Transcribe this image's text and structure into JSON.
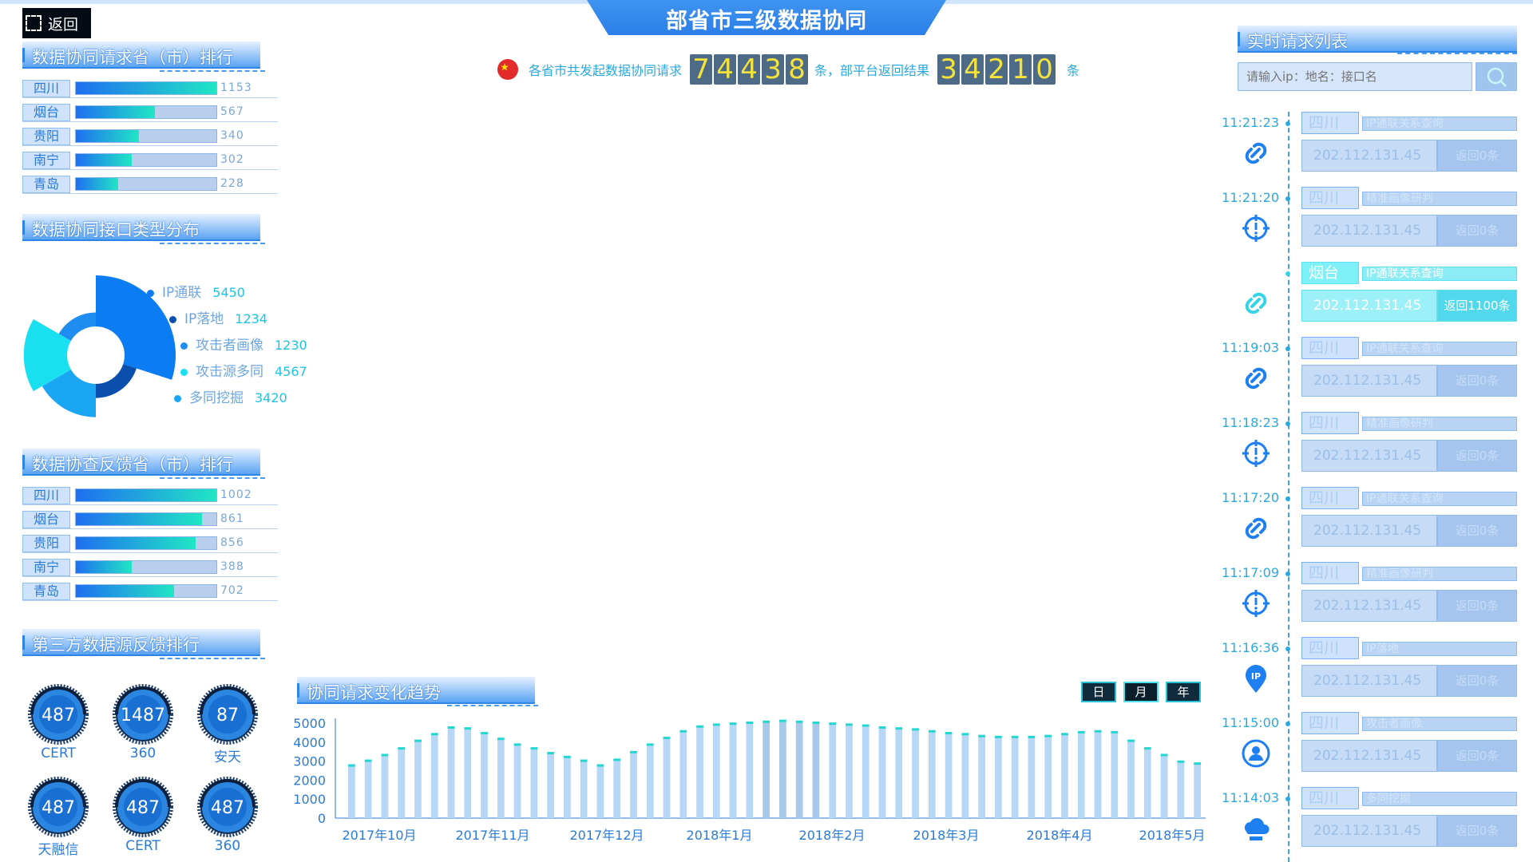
{
  "header": {
    "title": "部省市三级数据协同",
    "back_label": "返回"
  },
  "summary": {
    "prefix": "各省市共发起数据协同请求",
    "count1_digits": [
      "7",
      "4",
      "4",
      "3",
      "8"
    ],
    "middle": "条，部平台返回结果",
    "count2_digits": [
      "3",
      "4",
      "2",
      "1",
      "0"
    ],
    "suffix": "条"
  },
  "request_rank": {
    "title": "数据协同请求省（市）排行",
    "items": [
      {
        "name": "四川",
        "value": "1153",
        "fraction": 1.0
      },
      {
        "name": "烟台",
        "value": "567",
        "fraction": 0.56
      },
      {
        "name": "贵阳",
        "value": "340",
        "fraction": 0.45
      },
      {
        "name": "南宁",
        "value": "302",
        "fraction": 0.4
      },
      {
        "name": "青岛",
        "value": "228",
        "fraction": 0.3
      }
    ]
  },
  "interface_types": {
    "title": "数据协同接口类型分布",
    "items": [
      {
        "name": "IP通联",
        "value": "5450",
        "color": "#0b7cf2"
      },
      {
        "name": "IP落地",
        "value": "1234",
        "color": "#0b4fae"
      },
      {
        "name": "攻击者画像",
        "value": "1230",
        "color": "#1f8df0"
      },
      {
        "name": "攻击源多同",
        "value": "4567",
        "color": "#19e0f0"
      },
      {
        "name": "多同挖掘",
        "value": "3420",
        "color": "#1aa6f3"
      }
    ]
  },
  "feedback_rank": {
    "title": "数据协查反馈省（市）排行",
    "items": [
      {
        "name": "四川",
        "value": "1002",
        "fraction": 1.0
      },
      {
        "name": "烟台",
        "value": "861",
        "fraction": 0.9
      },
      {
        "name": "贵阳",
        "value": "856",
        "fraction": 0.85
      },
      {
        "name": "南宁",
        "value": "388",
        "fraction": 0.4
      },
      {
        "name": "青岛",
        "value": "702",
        "fraction": 0.7
      }
    ]
  },
  "third_party": {
    "title": "第三方数据源反馈排行",
    "items": [
      {
        "value": "487",
        "label": "CERT"
      },
      {
        "value": "1487",
        "label": "360"
      },
      {
        "value": "87",
        "label": "安天"
      },
      {
        "value": "487",
        "label": "天融信"
      },
      {
        "value": "487",
        "label": "CERT"
      },
      {
        "value": "487",
        "label": "360"
      }
    ]
  },
  "trend": {
    "title": "协同请求变化趋势",
    "tabs": [
      {
        "label": "日"
      },
      {
        "label": "月",
        "active": true
      },
      {
        "label": "年"
      }
    ]
  },
  "chart_data": {
    "type": "bar",
    "title": "协同请求变化趋势",
    "xlabel": "",
    "ylabel": "",
    "x_tick_labels": [
      "2017年10月",
      "2017年11月",
      "2017年12月",
      "2018年1月",
      "2018年2月",
      "2018年3月",
      "2018年4月",
      "2018年5月"
    ],
    "y_ticks": [
      0,
      1000,
      2000,
      3000,
      4000,
      5000
    ],
    "ylim": [
      0,
      5000
    ],
    "values": [
      2750,
      3000,
      3300,
      3650,
      4050,
      4400,
      4750,
      4700,
      4450,
      4150,
      3850,
      3650,
      3400,
      3200,
      3000,
      2750,
      3050,
      3450,
      3850,
      4200,
      4550,
      4800,
      4900,
      4950,
      5000,
      5050,
      5100,
      5050,
      5000,
      4950,
      4900,
      4850,
      4750,
      4700,
      4650,
      4550,
      4450,
      4400,
      4300,
      4250,
      4250,
      4250,
      4300,
      4400,
      4500,
      4550,
      4500,
      4050,
      3650,
      3300,
      2950,
      2850
    ],
    "highlight_indices": [
      25,
      26,
      27,
      28
    ]
  },
  "realtime": {
    "title": "实时请求列表",
    "search_placeholder": "请输入ip：地名：接口名",
    "items": [
      {
        "time": "11:21:23",
        "tag": "四川",
        "type": "IP通联关系查询",
        "ip": "202.112.131.45",
        "result": "返回0条",
        "icon": "link-icon"
      },
      {
        "time": "11:21:20",
        "tag": "四川",
        "type": "精准画像研判",
        "ip": "202.112.131.45",
        "result": "返回0条",
        "icon": "target-icon"
      },
      {
        "time": "",
        "tag": "烟台",
        "type": "IP通联关系查询",
        "ip": "202.112.131.45",
        "result": "返回1100条",
        "icon": "link-icon",
        "active": true
      },
      {
        "time": "11:19:03",
        "tag": "四川",
        "type": "IP通联关系查询",
        "ip": "202.112.131.45",
        "result": "返回0条",
        "icon": "link-icon"
      },
      {
        "time": "11:18:23",
        "tag": "四川",
        "type": "精准画像研判",
        "ip": "202.112.131.45",
        "result": "返回0条",
        "icon": "target-icon"
      },
      {
        "time": "11:17:20",
        "tag": "四川",
        "type": "IP通联关系查询",
        "ip": "202.112.131.45",
        "result": "返回0条",
        "icon": "link-icon"
      },
      {
        "time": "11:17:09",
        "tag": "四川",
        "type": "精准画像研判",
        "ip": "202.112.131.45",
        "result": "返回0条",
        "icon": "target-icon"
      },
      {
        "time": "11:16:36",
        "tag": "四川",
        "type": "IP落地",
        "ip": "202.112.131.45",
        "result": "返回0条",
        "icon": "ip-pin-icon"
      },
      {
        "time": "11:15:00",
        "tag": "四川",
        "type": "攻击者画像",
        "ip": "202.112.131.45",
        "result": "返回0条",
        "icon": "user-target-icon"
      },
      {
        "time": "11:14:03",
        "tag": "四川",
        "type": "多同挖掘",
        "ip": "202.112.131.45",
        "result": "返回0条",
        "icon": "cloud-network-icon"
      }
    ]
  }
}
